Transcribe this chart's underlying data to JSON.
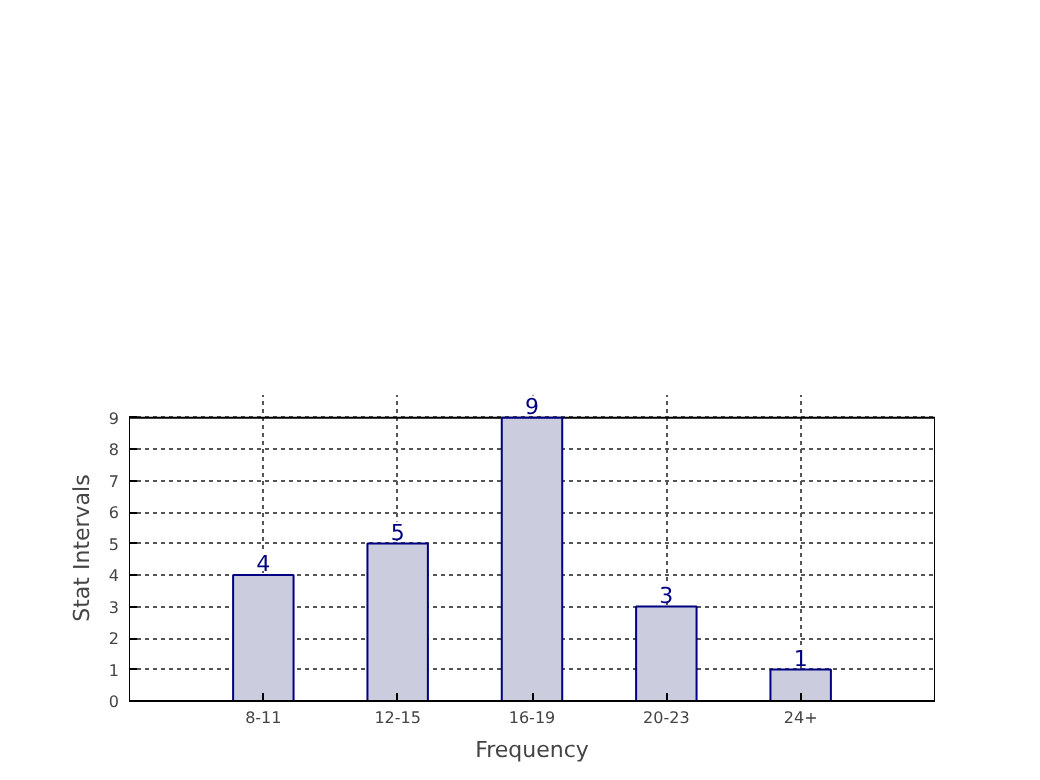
{
  "chart_data": {
    "type": "bar",
    "xlabel": "Frequency",
    "ylabel": "Stat Intervals",
    "categories": [
      "8-11",
      "12-15",
      "16-19",
      "20-23",
      "24+"
    ],
    "values": [
      4,
      5,
      9,
      3,
      1
    ],
    "color": "#ccccdf",
    "ylim": [
      0,
      9
    ],
    "yticks": [
      0,
      1,
      2,
      3,
      4,
      5,
      6,
      7,
      8,
      9
    ],
    "grid": true,
    "data_labels": true
  }
}
